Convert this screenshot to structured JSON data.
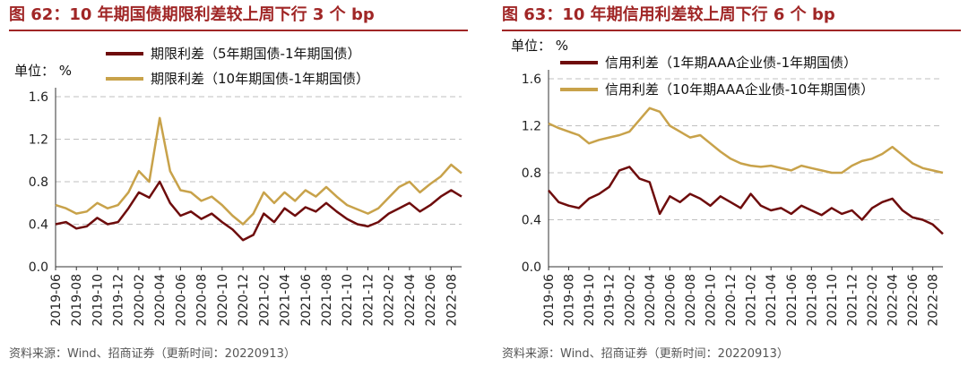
{
  "colors": {
    "title": "#a02626",
    "series_dark": "#6e0c0c",
    "series_gold": "#c8a24a",
    "grid": "#bfbfbf"
  },
  "chart_data": [
    {
      "type": "line",
      "figure_title": "图 62：10 年期国债期限利差较上周下行 3 个 bp",
      "unit_label": "单位：",
      "unit_value": "%",
      "ylim": [
        0,
        1.6
      ],
      "yticks": [
        "0.0",
        "0.4",
        "0.8",
        "1.2",
        "1.6"
      ],
      "x_tick_labels": [
        "2019-06",
        "2019-08",
        "2019-10",
        "2019-12",
        "2020-02",
        "2020-04",
        "2020-06",
        "2020-08",
        "2020-10",
        "2020-12",
        "2021-02",
        "2021-04",
        "2021-06",
        "2021-08",
        "2021-10",
        "2021-12",
        "2022-02",
        "2022-04",
        "2022-06",
        "2022-08"
      ],
      "grid": "horizontal dashed",
      "legend_position": "top",
      "source": "资料来源：Wind、招商证券（更新时间：20220913）",
      "series": [
        {
          "name": "期限利差（5年期国债-1年期国债）",
          "color": "#6e0c0c",
          "x": [
            "2019-06",
            "2019-07",
            "2019-08",
            "2019-09",
            "2019-10",
            "2019-11",
            "2019-12",
            "2020-01",
            "2020-02",
            "2020-03",
            "2020-04",
            "2020-05",
            "2020-06",
            "2020-07",
            "2020-08",
            "2020-09",
            "2020-10",
            "2020-11",
            "2020-12",
            "2021-01",
            "2021-02",
            "2021-03",
            "2021-04",
            "2021-05",
            "2021-06",
            "2021-07",
            "2021-08",
            "2021-09",
            "2021-10",
            "2021-11",
            "2021-12",
            "2022-01",
            "2022-02",
            "2022-03",
            "2022-04",
            "2022-05",
            "2022-06",
            "2022-07",
            "2022-08",
            "2022-09"
          ],
          "values": [
            0.4,
            0.42,
            0.36,
            0.38,
            0.46,
            0.4,
            0.42,
            0.55,
            0.7,
            0.65,
            0.8,
            0.6,
            0.48,
            0.52,
            0.45,
            0.5,
            0.42,
            0.35,
            0.25,
            0.3,
            0.5,
            0.42,
            0.55,
            0.48,
            0.56,
            0.52,
            0.6,
            0.52,
            0.45,
            0.4,
            0.38,
            0.42,
            0.5,
            0.55,
            0.6,
            0.52,
            0.58,
            0.66,
            0.72,
            0.66
          ]
        },
        {
          "name": "期限利差（10年期国债-1年期国债）",
          "color": "#c8a24a",
          "x": [
            "2019-06",
            "2019-07",
            "2019-08",
            "2019-09",
            "2019-10",
            "2019-11",
            "2019-12",
            "2020-01",
            "2020-02",
            "2020-03",
            "2020-04",
            "2020-05",
            "2020-06",
            "2020-07",
            "2020-08",
            "2020-09",
            "2020-10",
            "2020-11",
            "2020-12",
            "2021-01",
            "2021-02",
            "2021-03",
            "2021-04",
            "2021-05",
            "2021-06",
            "2021-07",
            "2021-08",
            "2021-09",
            "2021-10",
            "2021-11",
            "2021-12",
            "2022-01",
            "2022-02",
            "2022-03",
            "2022-04",
            "2022-05",
            "2022-06",
            "2022-07",
            "2022-08",
            "2022-09"
          ],
          "values": [
            0.58,
            0.55,
            0.5,
            0.52,
            0.6,
            0.55,
            0.58,
            0.7,
            0.9,
            0.8,
            1.4,
            0.9,
            0.72,
            0.7,
            0.62,
            0.66,
            0.58,
            0.48,
            0.4,
            0.5,
            0.7,
            0.6,
            0.7,
            0.62,
            0.72,
            0.66,
            0.75,
            0.66,
            0.58,
            0.54,
            0.5,
            0.55,
            0.65,
            0.75,
            0.8,
            0.7,
            0.78,
            0.85,
            0.96,
            0.88
          ]
        }
      ]
    },
    {
      "type": "line",
      "figure_title": "图 63：10 年期信用利差较上周下行 6 个 bp",
      "unit_label": "单位：",
      "unit_value": "%",
      "ylim": [
        0,
        1.6
      ],
      "yticks": [
        "0.0",
        "0.4",
        "0.8",
        "1.2",
        "1.6"
      ],
      "x_tick_labels": [
        "2019-06",
        "2019-08",
        "2019-10",
        "2019-12",
        "2020-02",
        "2020-04",
        "2020-06",
        "2020-08",
        "2020-10",
        "2020-12",
        "2021-02",
        "2021-04",
        "2021-06",
        "2021-08",
        "2021-10",
        "2021-12",
        "2022-02",
        "2022-04",
        "2022-06",
        "2022-08"
      ],
      "grid": "horizontal dashed",
      "legend_position": "top",
      "source": "资料来源：Wind、招商证券（更新时间：20220913）",
      "series": [
        {
          "name": "信用利差（1年期AAA企业债-1年期国债）",
          "color": "#6e0c0c",
          "x": [
            "2019-06",
            "2019-07",
            "2019-08",
            "2019-09",
            "2019-10",
            "2019-11",
            "2019-12",
            "2020-01",
            "2020-02",
            "2020-03",
            "2020-04",
            "2020-05",
            "2020-06",
            "2020-07",
            "2020-08",
            "2020-09",
            "2020-10",
            "2020-11",
            "2020-12",
            "2021-01",
            "2021-02",
            "2021-03",
            "2021-04",
            "2021-05",
            "2021-06",
            "2021-07",
            "2021-08",
            "2021-09",
            "2021-10",
            "2021-11",
            "2021-12",
            "2022-01",
            "2022-02",
            "2022-03",
            "2022-04",
            "2022-05",
            "2022-06",
            "2022-07",
            "2022-08",
            "2022-09"
          ],
          "values": [
            0.65,
            0.55,
            0.52,
            0.5,
            0.58,
            0.62,
            0.68,
            0.82,
            0.85,
            0.75,
            0.72,
            0.45,
            0.6,
            0.55,
            0.62,
            0.58,
            0.52,
            0.6,
            0.55,
            0.5,
            0.62,
            0.52,
            0.48,
            0.5,
            0.45,
            0.52,
            0.48,
            0.44,
            0.5,
            0.45,
            0.48,
            0.4,
            0.5,
            0.55,
            0.58,
            0.48,
            0.42,
            0.4,
            0.36,
            0.28
          ]
        },
        {
          "name": "信用利差（10年期AAA企业债-10年期国债）",
          "color": "#c8a24a",
          "x": [
            "2019-06",
            "2019-07",
            "2019-08",
            "2019-09",
            "2019-10",
            "2019-11",
            "2019-12",
            "2020-01",
            "2020-02",
            "2020-03",
            "2020-04",
            "2020-05",
            "2020-06",
            "2020-07",
            "2020-08",
            "2020-09",
            "2020-10",
            "2020-11",
            "2020-12",
            "2021-01",
            "2021-02",
            "2021-03",
            "2021-04",
            "2021-05",
            "2021-06",
            "2021-07",
            "2021-08",
            "2021-09",
            "2021-10",
            "2021-11",
            "2021-12",
            "2022-01",
            "2022-02",
            "2022-03",
            "2022-04",
            "2022-05",
            "2022-06",
            "2022-07",
            "2022-08",
            "2022-09"
          ],
          "values": [
            1.22,
            1.18,
            1.15,
            1.12,
            1.05,
            1.08,
            1.1,
            1.12,
            1.15,
            1.25,
            1.35,
            1.32,
            1.2,
            1.15,
            1.1,
            1.12,
            1.05,
            0.98,
            0.92,
            0.88,
            0.86,
            0.85,
            0.86,
            0.84,
            0.82,
            0.86,
            0.84,
            0.82,
            0.8,
            0.8,
            0.86,
            0.9,
            0.92,
            0.96,
            1.02,
            0.95,
            0.88,
            0.84,
            0.82,
            0.8
          ]
        }
      ]
    }
  ]
}
